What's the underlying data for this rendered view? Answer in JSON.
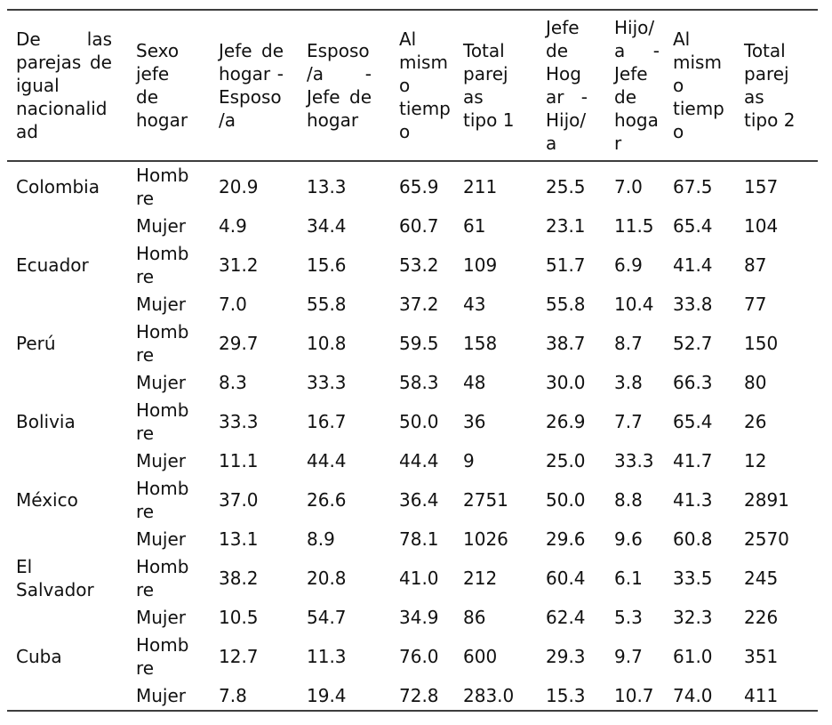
{
  "table": {
    "title": "De las parejas de igual nacionalidad",
    "columns": [
      "De las parejas de igual nacionalidad",
      "Sexo jefe de hogar",
      "Jefe de hogar - Esposo/a",
      "Esposo/a - Jefe de hogar",
      "Al mismo tiempo",
      "Total parejas tipo 1",
      "Jefe de Hogar - Hijo/a",
      "Hijo/a - Jefe de hogar",
      "Al mismo tiempo",
      "Total parejas tipo 2"
    ],
    "rows": [
      {
        "country": "Colombia",
        "sex": "Hombre",
        "values": [
          "20.9",
          "13.3",
          "65.9",
          "211",
          "25.5",
          "7.0",
          "67.5",
          "157"
        ]
      },
      {
        "country": "",
        "sex": "Mujer",
        "values": [
          "4.9",
          "34.4",
          "60.7",
          "61",
          "23.1",
          "11.5",
          "65.4",
          "104"
        ]
      },
      {
        "country": "Ecuador",
        "sex": "Hombre",
        "values": [
          "31.2",
          "15.6",
          "53.2",
          "109",
          "51.7",
          "6.9",
          "41.4",
          "87"
        ]
      },
      {
        "country": "",
        "sex": "Mujer",
        "values": [
          "7.0",
          "55.8",
          "37.2",
          "43",
          "55.8",
          "10.4",
          "33.8",
          "77"
        ]
      },
      {
        "country": "Perú",
        "sex": "Hombre",
        "values": [
          "29.7",
          "10.8",
          "59.5",
          "158",
          "38.7",
          "8.7",
          "52.7",
          "150"
        ]
      },
      {
        "country": "",
        "sex": "Mujer",
        "values": [
          "8.3",
          "33.3",
          "58.3",
          "48",
          "30.0",
          "3.8",
          "66.3",
          "80"
        ]
      },
      {
        "country": "Bolivia",
        "sex": "Hombre",
        "values": [
          "33.3",
          "16.7",
          "50.0",
          "36",
          "26.9",
          "7.7",
          "65.4",
          "26"
        ]
      },
      {
        "country": "",
        "sex": "Mujer",
        "values": [
          "11.1",
          "44.4",
          "44.4",
          "9",
          "25.0",
          "33.3",
          "41.7",
          "12"
        ]
      },
      {
        "country": "México",
        "sex": "Hombre",
        "values": [
          "37.0",
          "26.6",
          "36.4",
          "2751",
          "50.0",
          "8.8",
          "41.3",
          "2891"
        ]
      },
      {
        "country": "",
        "sex": "Mujer",
        "values": [
          "13.1",
          "8.9",
          "78.1",
          "1026",
          "29.6",
          "9.6",
          "60.8",
          "2570"
        ]
      },
      {
        "country": "El Salvador",
        "sex": "Hombre",
        "values": [
          "38.2",
          "20.8",
          "41.0",
          "212",
          "60.4",
          "6.1",
          "33.5",
          "245"
        ]
      },
      {
        "country": "",
        "sex": "Mujer",
        "values": [
          "10.5",
          "54.7",
          "34.9",
          "86",
          "62.4",
          "5.3",
          "32.3",
          "226"
        ]
      },
      {
        "country": "Cuba",
        "sex": "Hombre",
        "values": [
          "12.7",
          "11.3",
          "76.0",
          "600",
          "29.3",
          "9.7",
          "61.0",
          "351"
        ]
      },
      {
        "country": "",
        "sex": "Mujer",
        "values": [
          "7.8",
          "19.4",
          "72.8",
          "283.0",
          "15.3",
          "10.7",
          "74.0",
          "411"
        ]
      }
    ]
  }
}
